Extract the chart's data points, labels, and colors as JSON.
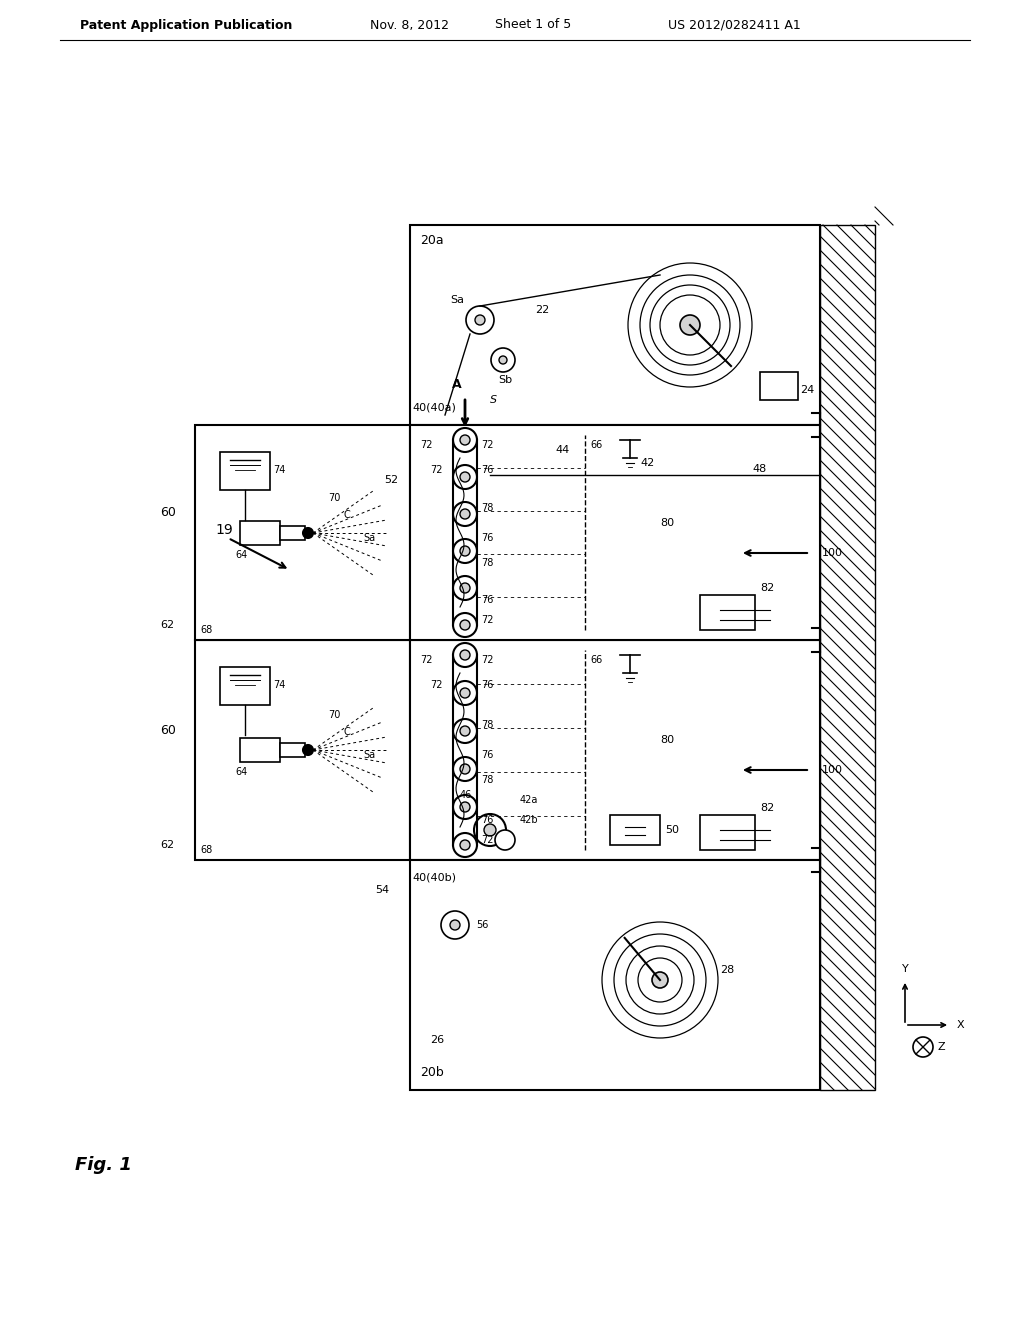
{
  "bg_color": "#ffffff",
  "header_text1": "Patent Application Publication",
  "header_text2": "Nov. 8, 2012",
  "header_text3": "Sheet 1 of 5",
  "header_text4": "US 2012/0282411 A1",
  "fig_label": "Fig. 1",
  "lc": "#000000"
}
